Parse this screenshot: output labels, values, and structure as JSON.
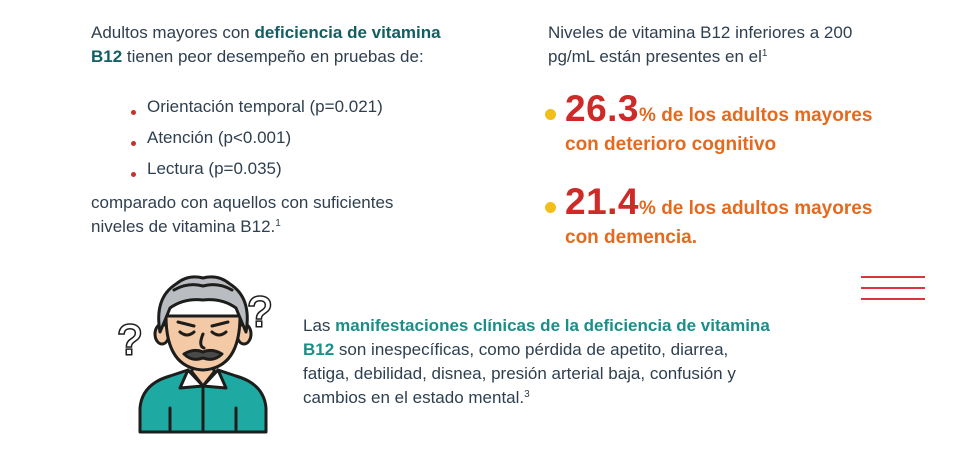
{
  "left": {
    "intro_pre": "Adultos mayores con ",
    "intro_bold_1": "deficiencia de vitamina",
    "intro_bold_2": "B12",
    "intro_post": " tienen peor desempeño en pruebas de:",
    "bullets": [
      "Orientación temporal (p=0.021)",
      "Atención (p<0.001)",
      "Lectura (p=0.035)"
    ],
    "outro_line1": "comparado con aquellos con suficientes",
    "outro_line2": "niveles de vitamina B12.",
    "outro_sup": "1"
  },
  "right": {
    "intro_line1": "Niveles de vitamina B12 inferiores a 200",
    "intro_line2": "pg/mL están presentes en el",
    "intro_sup": "1",
    "stats": [
      {
        "value": "26.3",
        "unit": "%",
        "text1": " de los adultos mayores",
        "text2": "con deterioro cognitivo"
      },
      {
        "value": "21.4",
        "unit": "%",
        "text1": " de los adultos mayores",
        "text2": "con demencia."
      }
    ]
  },
  "bottom": {
    "pre": "Las ",
    "bold_1": "manifestaciones clínicas de la deficiencia de vitamina",
    "bold_2": "B12",
    "line2_post": " son inespecíficas, como pérdida de apetito, diarrea,",
    "line3": "fatiga, debilidad, disnea, presión arterial baja, confusión y",
    "line4": "cambios en el estado mental.",
    "sup": "3"
  },
  "figure": {
    "icon": "confused-elderly-man-icon",
    "mark": "?"
  },
  "colors": {
    "text": "#2e3f4f",
    "teal": "#1a8f88",
    "dark_teal": "#135e63",
    "red": "#cd2a28",
    "orange": "#e36a1e",
    "yellow": "#f2be1a",
    "shirt": "#1fa9a3"
  }
}
